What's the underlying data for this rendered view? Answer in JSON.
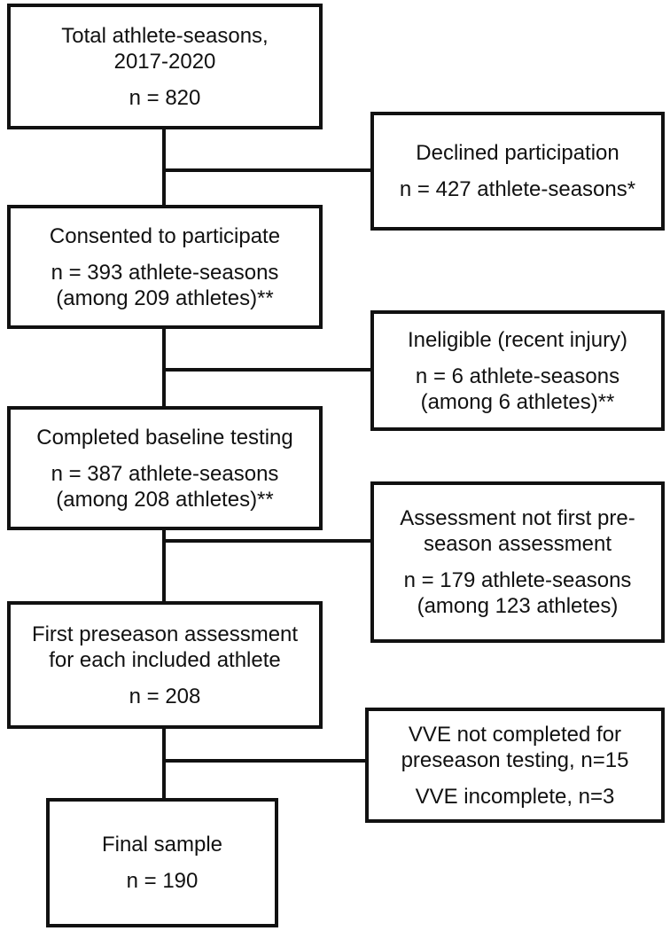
{
  "flowchart": {
    "main": [
      {
        "lines": [
          "Total athlete-seasons,",
          "2017-2020"
        ],
        "count": "n = 820"
      },
      {
        "lines": [
          "Consented to participate"
        ],
        "count": "n = 393 athlete-seasons",
        "extra": "(among 209 athletes)**"
      },
      {
        "lines": [
          "Completed baseline testing"
        ],
        "count": "n = 387 athlete-seasons",
        "extra": "(among 208 athletes)**"
      },
      {
        "lines": [
          "First preseason assessment",
          "for each included athlete"
        ],
        "count": "n = 208"
      },
      {
        "lines": [
          "Final sample"
        ],
        "count": "n = 190"
      }
    ],
    "exclusions": [
      {
        "lines": [
          "Declined participation"
        ],
        "count": "n = 427 athlete-seasons*"
      },
      {
        "lines": [
          "Ineligible (recent injury)"
        ],
        "count": "n = 6 athlete-seasons",
        "extra": "(among 6 athletes)**"
      },
      {
        "lines": [
          "Assessment not first pre-",
          "season assessment"
        ],
        "count": "n = 179 athlete-seasons",
        "extra": "(among 123 athletes)"
      },
      {
        "lines": [
          "VVE not completed for",
          "preseason testing, n=15"
        ],
        "count": "VVE incomplete, n=3"
      }
    ]
  }
}
